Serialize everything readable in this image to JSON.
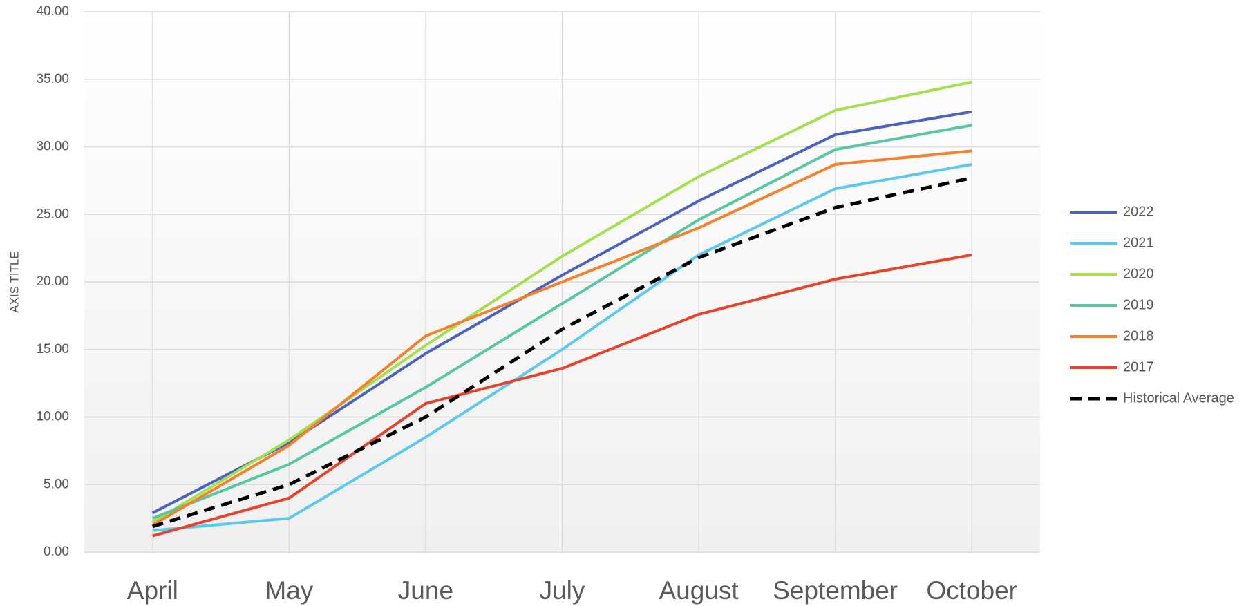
{
  "chart_data": {
    "type": "line",
    "y_axis_label": "AXIS TITLE",
    "categories": [
      "April",
      "May",
      "June",
      "July",
      "August",
      "September",
      "October"
    ],
    "series": [
      {
        "name": "2022",
        "color": "#4a62c2",
        "dash": false,
        "values": [
          2.9,
          8.1,
          14.7,
          20.5,
          26.0,
          30.9,
          32.6
        ]
      },
      {
        "name": "2021",
        "color": "#5bc8ef",
        "dash": false,
        "values": [
          1.6,
          2.5,
          8.5,
          15.0,
          22.0,
          26.9,
          28.7
        ]
      },
      {
        "name": "2020",
        "color": "#a3e04e",
        "dash": false,
        "values": [
          2.2,
          8.3,
          15.3,
          21.9,
          27.8,
          32.7,
          34.8
        ]
      },
      {
        "name": "2019",
        "color": "#55c8a0",
        "dash": false,
        "values": [
          2.5,
          6.5,
          12.2,
          18.4,
          24.6,
          29.8,
          31.6
        ]
      },
      {
        "name": "2018",
        "color": "#f7812a",
        "dash": false,
        "values": [
          2.0,
          7.9,
          16.0,
          20.0,
          24.0,
          28.7,
          29.7
        ]
      },
      {
        "name": "2017",
        "color": "#e8432a",
        "dash": false,
        "values": [
          1.2,
          4.0,
          11.0,
          13.6,
          17.6,
          20.2,
          22.0
        ]
      },
      {
        "name": "Historical Average",
        "color": "#000000",
        "dash": true,
        "values": [
          1.9,
          5.0,
          10.0,
          16.5,
          21.8,
          25.5,
          27.7
        ]
      }
    ],
    "ylim": [
      0,
      40
    ],
    "yticks": [
      {
        "value": 0,
        "label": "0.00"
      },
      {
        "value": 5,
        "label": "5.00"
      },
      {
        "value": 10,
        "label": "10.00"
      },
      {
        "value": 15,
        "label": "15.00"
      },
      {
        "value": 20,
        "label": "20.00"
      },
      {
        "value": 25,
        "label": "25.00"
      },
      {
        "value": 30,
        "label": "30.00"
      },
      {
        "value": 35,
        "label": "35.00"
      },
      {
        "value": 40,
        "label": "40.00"
      }
    ],
    "grid": true,
    "legend": "right"
  }
}
